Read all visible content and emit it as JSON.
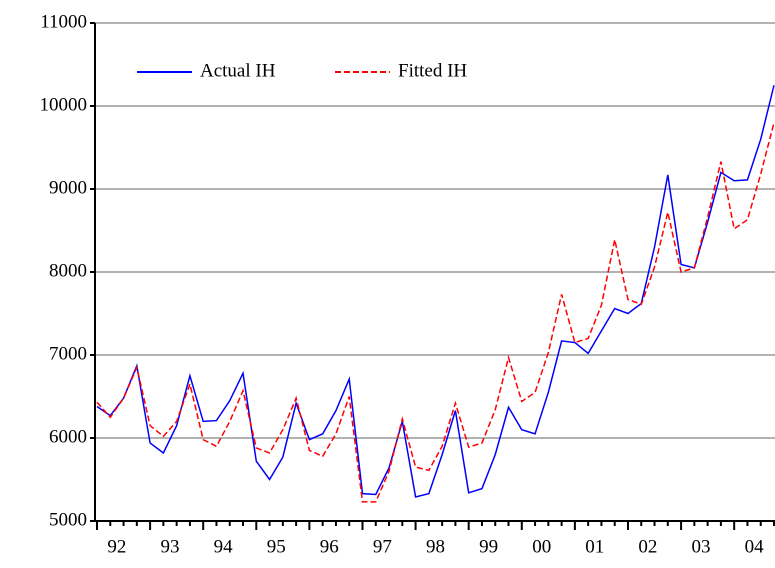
{
  "chart_data": {
    "type": "line",
    "categories": [
      "92",
      null,
      null,
      null,
      "93",
      null,
      null,
      null,
      "94",
      null,
      null,
      null,
      "95",
      null,
      null,
      null,
      "96",
      null,
      null,
      null,
      "97",
      null,
      null,
      null,
      "98",
      null,
      null,
      null,
      "99",
      null,
      null,
      null,
      "00",
      null,
      null,
      null,
      "01",
      null,
      null,
      null,
      "02",
      null,
      null,
      null,
      "03",
      null,
      null,
      null,
      "04",
      null,
      null,
      null
    ],
    "series": [
      {
        "name": "Actual IH",
        "color": "#0000ff",
        "dash": false,
        "values": [
          6380,
          6270,
          6480,
          6870,
          5940,
          5820,
          6150,
          6750,
          6200,
          6210,
          6450,
          6780,
          5720,
          5500,
          5770,
          6420,
          5980,
          6050,
          6330,
          6710,
          5330,
          5320,
          5640,
          6200,
          5290,
          5330,
          5800,
          6330,
          5340,
          5390,
          5800,
          6370,
          6100,
          6050,
          6550,
          7170,
          7150,
          7020,
          7290,
          7560,
          7500,
          7620,
          8300,
          9170,
          8090,
          8050,
          8600,
          9200,
          9100,
          9110,
          9600,
          10250
        ]
      },
      {
        "name": "Fitted IH",
        "color": "#ff0000",
        "dash": true,
        "values": [
          6430,
          6250,
          6480,
          6850,
          6150,
          6020,
          6200,
          6650,
          5980,
          5900,
          6200,
          6570,
          5880,
          5820,
          6100,
          6480,
          5850,
          5780,
          6050,
          6500,
          5230,
          5230,
          5600,
          6230,
          5650,
          5610,
          5900,
          6420,
          5890,
          5940,
          6340,
          6970,
          6440,
          6550,
          7030,
          7730,
          7150,
          7200,
          7600,
          8390,
          7670,
          7610,
          8060,
          8720,
          8000,
          8050,
          8660,
          9330,
          8520,
          8630,
          9180,
          9800
        ]
      }
    ],
    "ylim": [
      5000,
      11000
    ],
    "yticks": [
      5000,
      6000,
      7000,
      8000,
      9000,
      10000,
      11000
    ],
    "grid": true,
    "legend": "top-left"
  }
}
